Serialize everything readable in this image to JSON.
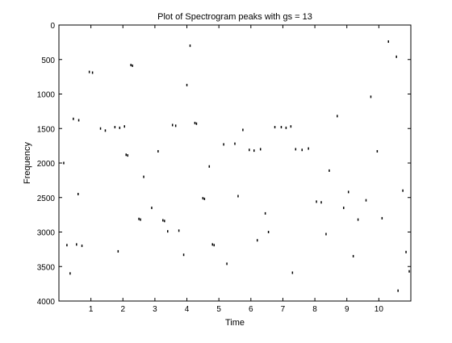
{
  "chart_data": {
    "type": "scatter",
    "title": "Plot of Spectrogram peaks with gs = 13",
    "xlabel": "Time",
    "ylabel": "Frequency",
    "xlim": [
      0,
      11
    ],
    "ylim": [
      0,
      4000
    ],
    "y_reversed": true,
    "xticks": [
      1,
      2,
      3,
      4,
      5,
      6,
      7,
      8,
      9,
      10
    ],
    "yticks": [
      0,
      500,
      1000,
      1500,
      2000,
      2500,
      3000,
      3500,
      4000
    ],
    "grid": false,
    "marker_color": "#000000",
    "background_color": "#ffffff",
    "points": [
      {
        "x": 0.55,
        "y": 3180
      },
      {
        "x": 0.72,
        "y": 3200
      },
      {
        "x": 0.25,
        "y": 3190
      },
      {
        "x": 0.95,
        "y": 680
      },
      {
        "x": 1.05,
        "y": 690
      },
      {
        "x": 0.45,
        "y": 1360
      },
      {
        "x": 0.62,
        "y": 1380
      },
      {
        "x": 1.3,
        "y": 1500
      },
      {
        "x": 1.75,
        "y": 1480
      },
      {
        "x": 1.9,
        "y": 1490
      },
      {
        "x": 2.05,
        "y": 1470
      },
      {
        "x": 2.25,
        "y": 580
      },
      {
        "x": 2.3,
        "y": 590
      },
      {
        "x": 2.1,
        "y": 1880
      },
      {
        "x": 2.15,
        "y": 1890
      },
      {
        "x": 2.5,
        "y": 2810
      },
      {
        "x": 2.55,
        "y": 2820
      },
      {
        "x": 2.9,
        "y": 2650
      },
      {
        "x": 3.25,
        "y": 2830
      },
      {
        "x": 3.3,
        "y": 2840
      },
      {
        "x": 3.4,
        "y": 2990
      },
      {
        "x": 3.75,
        "y": 2980
      },
      {
        "x": 3.55,
        "y": 1450
      },
      {
        "x": 3.65,
        "y": 1460
      },
      {
        "x": 4.0,
        "y": 870
      },
      {
        "x": 4.1,
        "y": 300
      },
      {
        "x": 4.25,
        "y": 1420
      },
      {
        "x": 4.3,
        "y": 1430
      },
      {
        "x": 4.5,
        "y": 2510
      },
      {
        "x": 4.55,
        "y": 2520
      },
      {
        "x": 4.8,
        "y": 3180
      },
      {
        "x": 4.85,
        "y": 3190
      },
      {
        "x": 5.15,
        "y": 1730
      },
      {
        "x": 5.25,
        "y": 3460
      },
      {
        "x": 5.5,
        "y": 1720
      },
      {
        "x": 5.75,
        "y": 1520
      },
      {
        "x": 5.95,
        "y": 1810
      },
      {
        "x": 6.1,
        "y": 1820
      },
      {
        "x": 6.3,
        "y": 1800
      },
      {
        "x": 6.45,
        "y": 2730
      },
      {
        "x": 6.55,
        "y": 3000
      },
      {
        "x": 6.75,
        "y": 1480
      },
      {
        "x": 6.95,
        "y": 1480
      },
      {
        "x": 7.1,
        "y": 1490
      },
      {
        "x": 7.25,
        "y": 1470
      },
      {
        "x": 7.4,
        "y": 1800
      },
      {
        "x": 7.6,
        "y": 1810
      },
      {
        "x": 7.8,
        "y": 1790
      },
      {
        "x": 8.05,
        "y": 2560
      },
      {
        "x": 8.2,
        "y": 2570
      },
      {
        "x": 8.45,
        "y": 2110
      },
      {
        "x": 8.7,
        "y": 1320
      },
      {
        "x": 8.9,
        "y": 2650
      },
      {
        "x": 9.05,
        "y": 2420
      },
      {
        "x": 9.35,
        "y": 2820
      },
      {
        "x": 9.6,
        "y": 2540
      },
      {
        "x": 9.75,
        "y": 1040
      },
      {
        "x": 9.95,
        "y": 1830
      },
      {
        "x": 10.3,
        "y": 240
      },
      {
        "x": 10.55,
        "y": 460
      },
      {
        "x": 10.75,
        "y": 2400
      },
      {
        "x": 10.85,
        "y": 3290
      },
      {
        "x": 10.95,
        "y": 3570
      },
      {
        "x": 0.15,
        "y": 2000
      },
      {
        "x": 0.35,
        "y": 3600
      },
      {
        "x": 0.6,
        "y": 2450
      },
      {
        "x": 1.45,
        "y": 1530
      },
      {
        "x": 1.85,
        "y": 3280
      },
      {
        "x": 2.65,
        "y": 2200
      },
      {
        "x": 3.1,
        "y": 1830
      },
      {
        "x": 3.9,
        "y": 3330
      },
      {
        "x": 4.7,
        "y": 2050
      },
      {
        "x": 5.6,
        "y": 2480
      },
      {
        "x": 6.2,
        "y": 3120
      },
      {
        "x": 7.3,
        "y": 3590
      },
      {
        "x": 8.35,
        "y": 3030
      },
      {
        "x": 9.2,
        "y": 3350
      },
      {
        "x": 10.1,
        "y": 2800
      },
      {
        "x": 10.6,
        "y": 3850
      }
    ]
  }
}
